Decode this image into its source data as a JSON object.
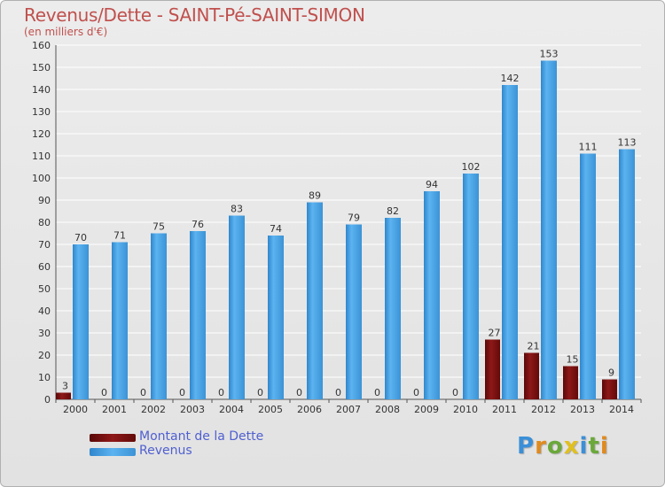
{
  "title": "Revenus/Dette - SAINT-Pé-SAINT-SIMON",
  "subtitle": "(en milliers d'€)",
  "legend": {
    "items": [
      {
        "label": "Montant de la Dette",
        "color": "#7a1010"
      },
      {
        "label": "Revenus",
        "color": "#4aa0e0"
      }
    ]
  },
  "logo": {
    "text": "Proxiti"
  },
  "colors": {
    "debt": "#7a1010",
    "revenue": "#4aa0e0",
    "grid": "#ffffff",
    "axis_text": "#333333",
    "title": "#c0504d"
  },
  "chart_data": {
    "type": "bar",
    "categories": [
      "2000",
      "2001",
      "2002",
      "2003",
      "2004",
      "2005",
      "2006",
      "2007",
      "2008",
      "2009",
      "2010",
      "2011",
      "2012",
      "2013",
      "2014"
    ],
    "series": [
      {
        "name": "Montant de la Dette",
        "values": [
          3,
          0,
          0,
          0,
          0,
          0,
          0,
          0,
          0,
          0,
          0,
          27,
          21,
          15,
          9
        ]
      },
      {
        "name": "Revenus",
        "values": [
          70,
          71,
          75,
          76,
          83,
          74,
          89,
          79,
          82,
          94,
          102,
          142,
          153,
          111,
          113
        ]
      }
    ],
    "ylim": [
      0,
      160
    ],
    "yticks": [
      0,
      10,
      20,
      30,
      40,
      50,
      60,
      70,
      80,
      90,
      100,
      110,
      120,
      130,
      140,
      150,
      160
    ],
    "grid": true,
    "legend_position": "bottom-left"
  }
}
